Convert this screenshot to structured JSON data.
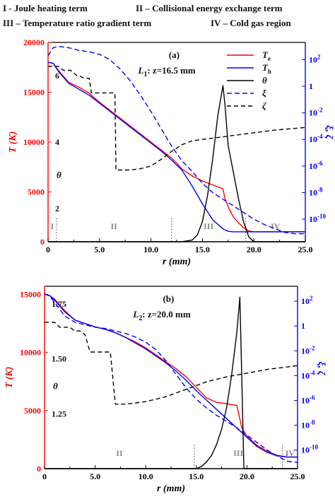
{
  "header": {
    "line1_left": "I - Joule heating term",
    "line1_right": "II – Collisional energy exchange term",
    "line2_left": "III – Temperature ratio gradient term",
    "line2_right": "IV – Cold gas region"
  },
  "colors": {
    "Te": "#ff0000",
    "Th": "#0000ff",
    "theta": "#000000",
    "xi": "#0000ff",
    "zeta": "#000000"
  },
  "chart_data": [
    {
      "type": "line",
      "panel_label": "(a)",
      "line_label": "L",
      "line_label_sub": "1",
      "line_label_rest": ": z=16.5 mm",
      "xlabel": "r (mm)",
      "ylabel": "T (K)",
      "xlim": [
        0,
        25
      ],
      "ylim": [
        0,
        20000
      ],
      "x_ticks": [
        "0",
        "5.0",
        "10.0",
        "15.0",
        "20.0",
        "25.0"
      ],
      "y_ticks": [
        "0",
        "5000",
        "10000",
        "15000",
        "20000"
      ],
      "y2_ticks": [
        "10^2",
        "1",
        "10^-2",
        "10^-4",
        "10^-6",
        "10^-8",
        "10^-10"
      ],
      "y2_label": "ξ, ζ",
      "y2_range_log10": [
        -11.7,
        3.3
      ],
      "theta_label": "θ",
      "theta_ticks": [
        "2",
        "4",
        "6"
      ],
      "theta_range": [
        1,
        7
      ],
      "regions": [
        {
          "label": "I",
          "x_end": 0.8
        },
        {
          "label": "II",
          "x_end": 12.0
        },
        {
          "label": "III",
          "x_end": 19.2
        },
        {
          "label": "IV",
          "x_end": null
        }
      ],
      "legend": [
        {
          "label": "T",
          "sub": "e"
        },
        {
          "label": "T",
          "sub": "h"
        },
        {
          "label": "θ",
          "sub": ""
        },
        {
          "label": "ξ",
          "sub": ""
        },
        {
          "label": "ζ",
          "sub": ""
        }
      ],
      "series": [
        {
          "name": "Te",
          "axis": "T",
          "style": "solid",
          "x": [
            0,
            0.5,
            1,
            2,
            3,
            4,
            5,
            6,
            7,
            8,
            9,
            10,
            11,
            12,
            12.5,
            13,
            14,
            15,
            16,
            16.5,
            17,
            17.2,
            17.6,
            18,
            18.5,
            19,
            19.5,
            20,
            21,
            22,
            23,
            24,
            25
          ],
          "y": [
            18000,
            17900,
            17200,
            16000,
            15500,
            14900,
            14000,
            13200,
            12400,
            11600,
            10800,
            10000,
            9200,
            8400,
            7900,
            7300,
            6600,
            6100,
            5700,
            5500,
            5300,
            4300,
            3300,
            2500,
            1900,
            1400,
            1100,
            1000,
            1000,
            1000,
            1000,
            1000,
            1000
          ]
        },
        {
          "name": "Th",
          "axis": "T",
          "style": "solid",
          "x": [
            0,
            0.5,
            1,
            2,
            3,
            4,
            5,
            6,
            7,
            8,
            9,
            10,
            11,
            12,
            13,
            14,
            15,
            16,
            17,
            17.5,
            18,
            19,
            20,
            21,
            22,
            23,
            24,
            25
          ],
          "y": [
            18000,
            17900,
            17100,
            15900,
            15300,
            14700,
            13900,
            13100,
            12300,
            11500,
            10700,
            9900,
            9100,
            8200,
            7200,
            5600,
            3800,
            2200,
            1300,
            1050,
            1000,
            1000,
            1000,
            1000,
            1000,
            1000,
            1000,
            1000
          ]
        },
        {
          "name": "θ",
          "axis": "theta",
          "style": "solid",
          "x": [
            0,
            5,
            10,
            13,
            14,
            14.5,
            15,
            15.5,
            16,
            16.5,
            17,
            17.2,
            17.5,
            18,
            18.5,
            19,
            19.5,
            20,
            21,
            25
          ],
          "y": [
            1,
            1,
            1,
            1,
            1.05,
            1.2,
            1.6,
            2.4,
            3.5,
            4.8,
            5.7,
            5.1,
            3.9,
            3.1,
            2.3,
            1.6,
            1.15,
            1,
            1,
            1
          ]
        },
        {
          "name": "ξ",
          "axis": "log",
          "style": "dashed",
          "x": [
            0,
            0.5,
            1,
            2,
            3,
            4,
            5,
            6,
            7,
            8,
            9,
            10,
            11,
            12,
            13,
            14,
            15,
            16,
            17,
            18,
            19,
            20,
            21,
            22,
            23,
            24,
            25
          ],
          "y": [
            2.3,
            2.9,
            3.0,
            2.9,
            2.7,
            2.6,
            2.4,
            2.0,
            1.3,
            0.4,
            -0.7,
            -1.9,
            -3.2,
            -4.5,
            -5.6,
            -6.4,
            -7.3,
            -8.0,
            -8.5,
            -9.0,
            -9.5,
            -10.0,
            -10.4,
            -10.7,
            -11.0,
            -11.1,
            -11.1
          ]
        },
        {
          "name": "ζ",
          "axis": "log",
          "style": "dashed",
          "x": [
            0,
            1,
            1.5,
            2.2,
            2.8,
            3,
            3.5,
            4,
            4.2,
            5,
            6,
            6.5,
            6.6,
            7,
            8,
            9,
            10,
            11,
            12,
            13,
            14,
            15,
            16,
            18,
            20,
            22,
            25
          ],
          "y": [
            1.5,
            1.5,
            1.2,
            1.2,
            0.8,
            0.8,
            0.6,
            0.6,
            -0.5,
            -0.5,
            -0.5,
            -0.5,
            -6.3,
            -6.3,
            -6.3,
            -6.2,
            -6.0,
            -5.5,
            -4.9,
            -4.4,
            -4.1,
            -4.0,
            -3.9,
            -3.7,
            -3.5,
            -3.3,
            -3.1
          ]
        }
      ]
    },
    {
      "type": "line",
      "panel_label": "(b)",
      "line_label": "L",
      "line_label_sub": "2",
      "line_label_rest": ": z=20.0 mm",
      "xlabel": "r (mm)",
      "ylabel": "T (K)",
      "xlim": [
        0,
        25
      ],
      "ylim": [
        0,
        15700
      ],
      "x_ticks": [
        "0",
        "5.0",
        "10.0",
        "15.0",
        "20.0",
        "25.0"
      ],
      "y_ticks": [
        "0",
        "5000",
        "10000",
        "15000"
      ],
      "y2_ticks": [
        "10^2",
        "1",
        "10^-2",
        "10^-4",
        "10^-6",
        "10^-8",
        "10^-10"
      ],
      "y2_label": "ξ, ζ",
      "y2_range_log10": [
        -11.5,
        3.2
      ],
      "theta_label": "θ",
      "theta_ticks": [
        "1.25",
        "1.50",
        "1.75"
      ],
      "theta_range": [
        1,
        1.83
      ],
      "regions": [
        {
          "label": "II",
          "x_end": 14.8
        },
        {
          "label": "III",
          "x_end": 23.5
        },
        {
          "label": "IV",
          "x_end": null
        }
      ],
      "series": [
        {
          "name": "Te",
          "axis": "T",
          "style": "solid",
          "x": [
            0,
            0.5,
            1,
            2,
            3,
            4,
            5,
            6,
            7,
            8,
            9,
            10,
            11,
            12,
            13,
            14,
            15,
            16,
            17,
            18,
            18.5,
            19,
            19.5,
            20,
            21,
            22,
            23,
            24,
            25
          ],
          "y": [
            15000,
            14900,
            14600,
            13600,
            12800,
            12500,
            12200,
            12000,
            11700,
            11300,
            10900,
            10400,
            9800,
            9200,
            8600,
            7900,
            7000,
            6100,
            5700,
            5600,
            5500,
            5450,
            3500,
            2800,
            2000,
            1500,
            1150,
            1000,
            1000
          ]
        },
        {
          "name": "Th",
          "axis": "T",
          "style": "solid",
          "x": [
            0,
            0.5,
            1,
            2,
            3,
            4,
            5,
            6,
            7,
            8,
            9,
            10,
            11,
            12,
            13,
            14,
            15,
            16,
            17,
            18,
            19,
            20,
            21,
            22,
            23,
            24,
            25
          ],
          "y": [
            15000,
            14900,
            14500,
            13500,
            12800,
            12500,
            12200,
            12000,
            11700,
            11300,
            10800,
            10300,
            9700,
            9100,
            8400,
            7600,
            6700,
            5900,
            5100,
            4300,
            3500,
            2700,
            1900,
            1400,
            1100,
            1000,
            1000
          ]
        },
        {
          "name": "θ",
          "axis": "theta",
          "style": "solid",
          "x": [
            0,
            5,
            10,
            15,
            15.5,
            16,
            16.5,
            17,
            17.5,
            18,
            18.5,
            19,
            19.3,
            19.5,
            19.7,
            20,
            25
          ],
          "y": [
            1,
            1,
            1,
            1,
            1.01,
            1.03,
            1.06,
            1.11,
            1.18,
            1.28,
            1.43,
            1.62,
            1.78,
            1.4,
            1.0,
            1.0,
            1.0
          ]
        },
        {
          "name": "ξ",
          "axis": "log",
          "style": "dashed",
          "x": [
            0,
            0.5,
            1,
            2,
            3,
            4,
            5,
            6,
            7,
            8,
            9,
            10,
            11,
            12,
            13,
            14,
            15,
            16,
            17,
            18,
            19,
            20,
            21,
            22,
            23,
            24,
            25
          ],
          "y": [
            2.6,
            2.4,
            1.9,
            0.8,
            0.3,
            0.1,
            -0.1,
            -0.2,
            -0.4,
            -0.6,
            -0.9,
            -1.3,
            -1.9,
            -2.8,
            -3.9,
            -5.0,
            -5.9,
            -6.6,
            -7.2,
            -7.7,
            -8.2,
            -8.8,
            -9.4,
            -10.0,
            -10.5,
            -10.9,
            -11.0
          ]
        },
        {
          "name": "ζ",
          "axis": "log",
          "style": "dashed",
          "x": [
            0,
            1,
            1.5,
            2.5,
            3,
            3.5,
            4,
            4.5,
            6.5,
            7,
            8,
            9,
            10,
            11,
            12,
            13,
            14,
            15,
            16,
            18,
            20,
            22,
            25
          ],
          "y": [
            0.3,
            0.3,
            -0.1,
            -0.1,
            -0.4,
            -0.4,
            -0.7,
            -2.1,
            -2.1,
            -6.3,
            -6.3,
            -6.2,
            -6.1,
            -5.9,
            -5.7,
            -5.4,
            -5.1,
            -4.8,
            -4.5,
            -4.1,
            -3.8,
            -3.5,
            -3.2
          ]
        }
      ]
    }
  ]
}
